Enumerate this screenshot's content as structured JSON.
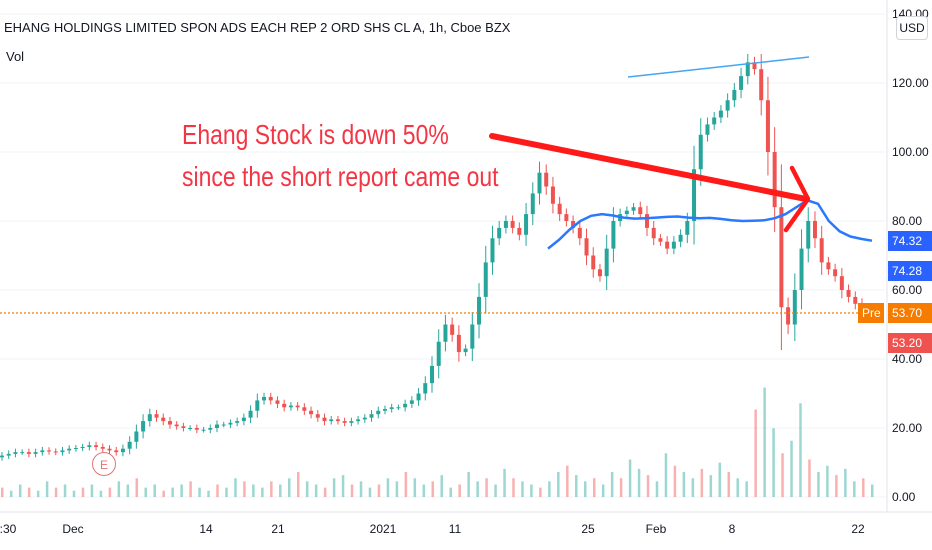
{
  "header": {
    "symbol_title": "EHANG HOLDINGS LIMITED SPON ADS EACH REP 2 ORD SHS CL A, 1h, Cboe BZX",
    "volume_label": "Vol"
  },
  "currency_button": "USD",
  "annotation": {
    "line1": "Ehang Stock is down 50%",
    "line2": "since the short report came out"
  },
  "earnings_marker": "E",
  "price_tags": {
    "ma_upper": "74.32",
    "ma_lower": "74.28",
    "pre_label": "Pre",
    "pre_value": "53.70",
    "last_value": "53.20"
  },
  "colors": {
    "up": "#26a69a",
    "down": "#ef5350",
    "ma": "#2962ff",
    "annotation": "#f23645",
    "pre": "#f57c00",
    "trendline": "#2196f3"
  },
  "chart_data": {
    "type": "candlestick",
    "x_tick_labels": [
      ":30",
      "Dec",
      "14",
      "21",
      "2021",
      "11",
      "25",
      "Feb",
      "8",
      "22"
    ],
    "y_tick_labels": [
      "140.00",
      "120.00",
      "100.00",
      "80.00",
      "60.00",
      "40.00",
      "20.00",
      "0.00"
    ],
    "price_range": [
      40,
      140
    ],
    "volume_range": [
      0,
      40
    ],
    "close_series": [
      12,
      12.5,
      13,
      13,
      12.5,
      13,
      13.5,
      13.2,
      13,
      13.5,
      14,
      14.2,
      14.5,
      15,
      14.5,
      14,
      13.5,
      13,
      14,
      16,
      19,
      22,
      24,
      23,
      22,
      21,
      20.5,
      20,
      20,
      19.5,
      19.5,
      20,
      21,
      21,
      21.5,
      22,
      23,
      25,
      28,
      29,
      28,
      27,
      26,
      26.5,
      26,
      25,
      24,
      23,
      22,
      22.5,
      22,
      21.5,
      22,
      22.5,
      23,
      24,
      25,
      25.5,
      26,
      26,
      27,
      28,
      30,
      33,
      38,
      45,
      50,
      47,
      42,
      43,
      50,
      58,
      68,
      75,
      78,
      80,
      78,
      76,
      82,
      88,
      94,
      90,
      85,
      82,
      80,
      78,
      75,
      70,
      66,
      64,
      72,
      80,
      82,
      83,
      84,
      82,
      78,
      75,
      74,
      72,
      74,
      76,
      80,
      95,
      105,
      108,
      110,
      112,
      115,
      118,
      122,
      126,
      124,
      115,
      100,
      84,
      55,
      50,
      60,
      72,
      80,
      75,
      68,
      66,
      64,
      60,
      58,
      56,
      54
    ],
    "moving_average": [
      72,
      74.5,
      77.5,
      80,
      81.5,
      82,
      81.6,
      81,
      80.7,
      80.8,
      81,
      81.2,
      81.3,
      81,
      80.8,
      80.9,
      80.6,
      80.2,
      80,
      80.1,
      80.2,
      80.8,
      82,
      84,
      86,
      85,
      80,
      77,
      75.5,
      74.8,
      74.3
    ],
    "volume": [
      3,
      2,
      4,
      3,
      2,
      5,
      3,
      4,
      2,
      3,
      4,
      2,
      3,
      5,
      4,
      6,
      3,
      4,
      2,
      3,
      4,
      5,
      3,
      2,
      4,
      3,
      6,
      5,
      4,
      3,
      5,
      4,
      6,
      8,
      5,
      4,
      3,
      6,
      7,
      4,
      5,
      3,
      4,
      6,
      5,
      8,
      6,
      4,
      5,
      7,
      3,
      4,
      8,
      5,
      6,
      4,
      9,
      6,
      5,
      4,
      3,
      5,
      8,
      10,
      7,
      5,
      6,
      4,
      8,
      6,
      12,
      9,
      7,
      5,
      14,
      10,
      8,
      6,
      9,
      7,
      11,
      8,
      6,
      5,
      28,
      35,
      22,
      14,
      18,
      30,
      12,
      8,
      10,
      7,
      9,
      5,
      6,
      4
    ]
  }
}
